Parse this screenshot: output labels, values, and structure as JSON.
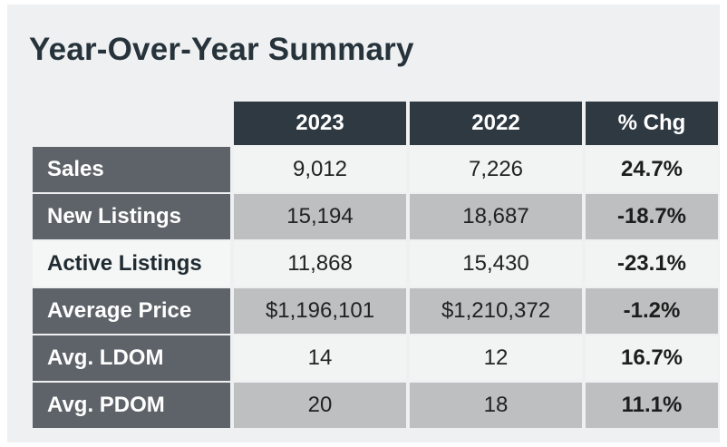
{
  "title": "Year-Over-Year Summary",
  "columns": [
    "2023",
    "2022",
    "% Chg"
  ],
  "rows": [
    {
      "label": "Sales",
      "v2023": "9,012",
      "v2022": "7,226",
      "chg": "24.7%"
    },
    {
      "label": "New Listings",
      "v2023": "15,194",
      "v2022": "18,687",
      "chg": "-18.7%"
    },
    {
      "label": "Active Listings",
      "v2023": "11,868",
      "v2022": "15,430",
      "chg": "-23.1%"
    },
    {
      "label": "Average Price",
      "v2023": "$1,196,101",
      "v2022": "$1,210,372",
      "chg": "-1.2%"
    },
    {
      "label": "Avg. LDOM",
      "v2023": "14",
      "v2022": "12",
      "chg": "16.7%"
    },
    {
      "label": "Avg. PDOM",
      "v2023": "20",
      "v2022": "18",
      "chg": "11.1%"
    }
  ],
  "colors": {
    "header_bg": "#2e3942",
    "label_bg": "#5e6369",
    "row_light": "#f2f3f3",
    "row_dark": "#bdbfc0",
    "title": "#27333b"
  }
}
